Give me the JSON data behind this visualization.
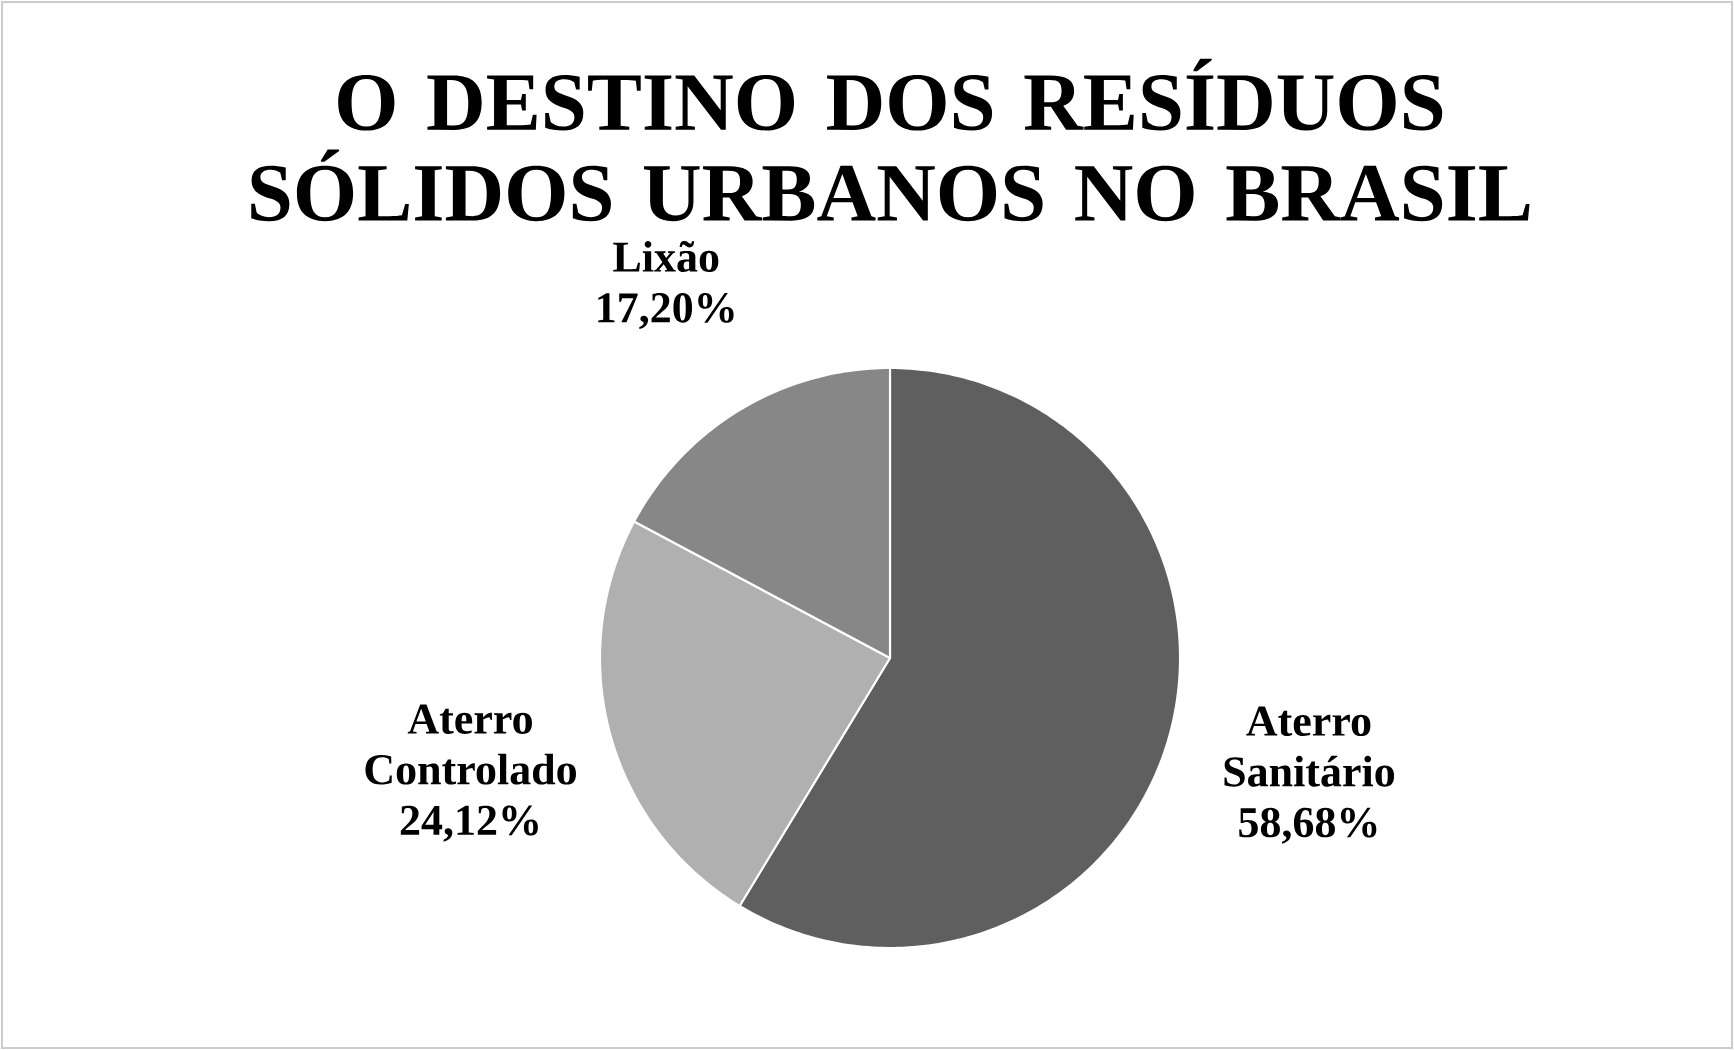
{
  "chart_data": {
    "type": "pie",
    "title": "O DESTINO DOS RESÍDUOS SÓLIDOS URBANOS NO BRASIL",
    "categories": [
      "Aterro Sanitário",
      "Aterro Controlado",
      "Lixão"
    ],
    "values": [
      58.68,
      24.12,
      17.2
    ],
    "colors": [
      "#5f5f5f",
      "#b0b0b0",
      "#878787"
    ],
    "value_labels": [
      "58,68%",
      "24,12%",
      "17,20%"
    ]
  }
}
